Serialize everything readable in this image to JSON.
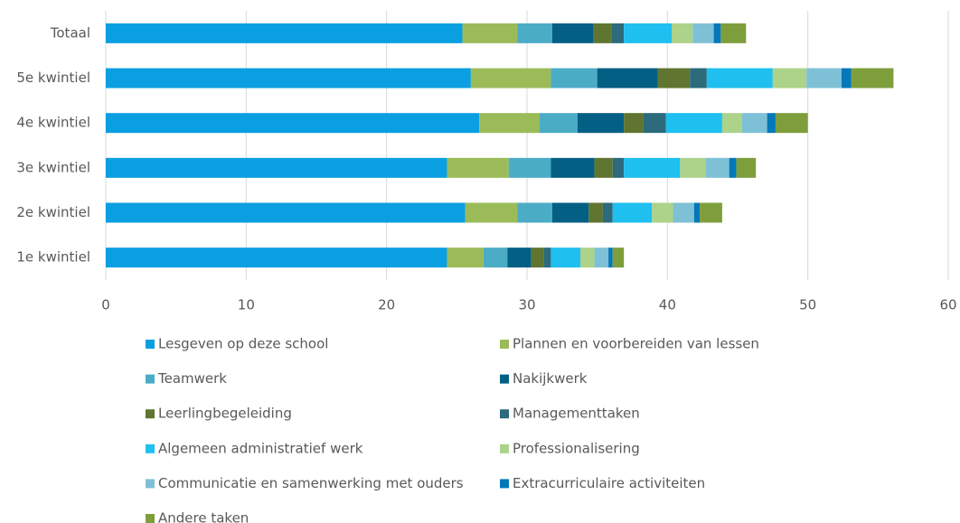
{
  "chart_data": {
    "type": "stacked_barh",
    "categories": [
      "Totaal",
      "5e kwintiel",
      "4e kwintiel",
      "3e kwintiel",
      "2e kwintiel",
      "1e kwintiel"
    ],
    "series": [
      {
        "name": "Lesgeven op deze school",
        "color": "#0a9fe0",
        "values": [
          25.4,
          26.0,
          26.6,
          24.3,
          25.6,
          24.3
        ]
      },
      {
        "name": "Plannen en voorbereiden van lessen",
        "color": "#9bbb59",
        "values": [
          3.9,
          5.7,
          4.3,
          4.4,
          3.7,
          2.6
        ]
      },
      {
        "name": "Teamwerk",
        "color": "#4bacc6",
        "values": [
          2.5,
          3.3,
          2.7,
          3.0,
          2.5,
          1.7
        ]
      },
      {
        "name": "Nakijkwerk",
        "color": "#045f84",
        "values": [
          2.9,
          4.3,
          3.3,
          3.1,
          2.6,
          1.7
        ]
      },
      {
        "name": "Leerlingbegeleiding",
        "color": "#5f7530",
        "values": [
          1.3,
          2.3,
          1.4,
          1.3,
          1.0,
          0.9
        ]
      },
      {
        "name": "Managementtaken",
        "color": "#2c6a7c",
        "values": [
          0.9,
          1.2,
          1.6,
          0.8,
          0.7,
          0.5
        ]
      },
      {
        "name": "Algemeen administratief werk",
        "color": "#1fbff0",
        "values": [
          3.4,
          4.7,
          4.0,
          4.0,
          2.8,
          2.1
        ]
      },
      {
        "name": "Professionalisering",
        "color": "#add28a",
        "values": [
          1.5,
          2.4,
          1.4,
          1.8,
          1.5,
          1.0
        ]
      },
      {
        "name": "Communicatie en samenwerking met ouders",
        "color": "#7ec1d6",
        "values": [
          1.5,
          2.5,
          1.8,
          1.7,
          1.5,
          1.0
        ]
      },
      {
        "name": "Extracurriculaire activiteiten",
        "color": "#0478b8",
        "values": [
          0.5,
          0.7,
          0.6,
          0.5,
          0.4,
          0.3
        ]
      },
      {
        "name": "Andere taken",
        "color": "#7e9e3c",
        "values": [
          1.8,
          3.0,
          2.3,
          1.4,
          1.6,
          0.8
        ]
      }
    ],
    "xlim": [
      0,
      60
    ],
    "xticks": [
      0,
      10,
      20,
      30,
      40,
      50,
      60
    ],
    "grid": true,
    "legend": "bottom"
  }
}
